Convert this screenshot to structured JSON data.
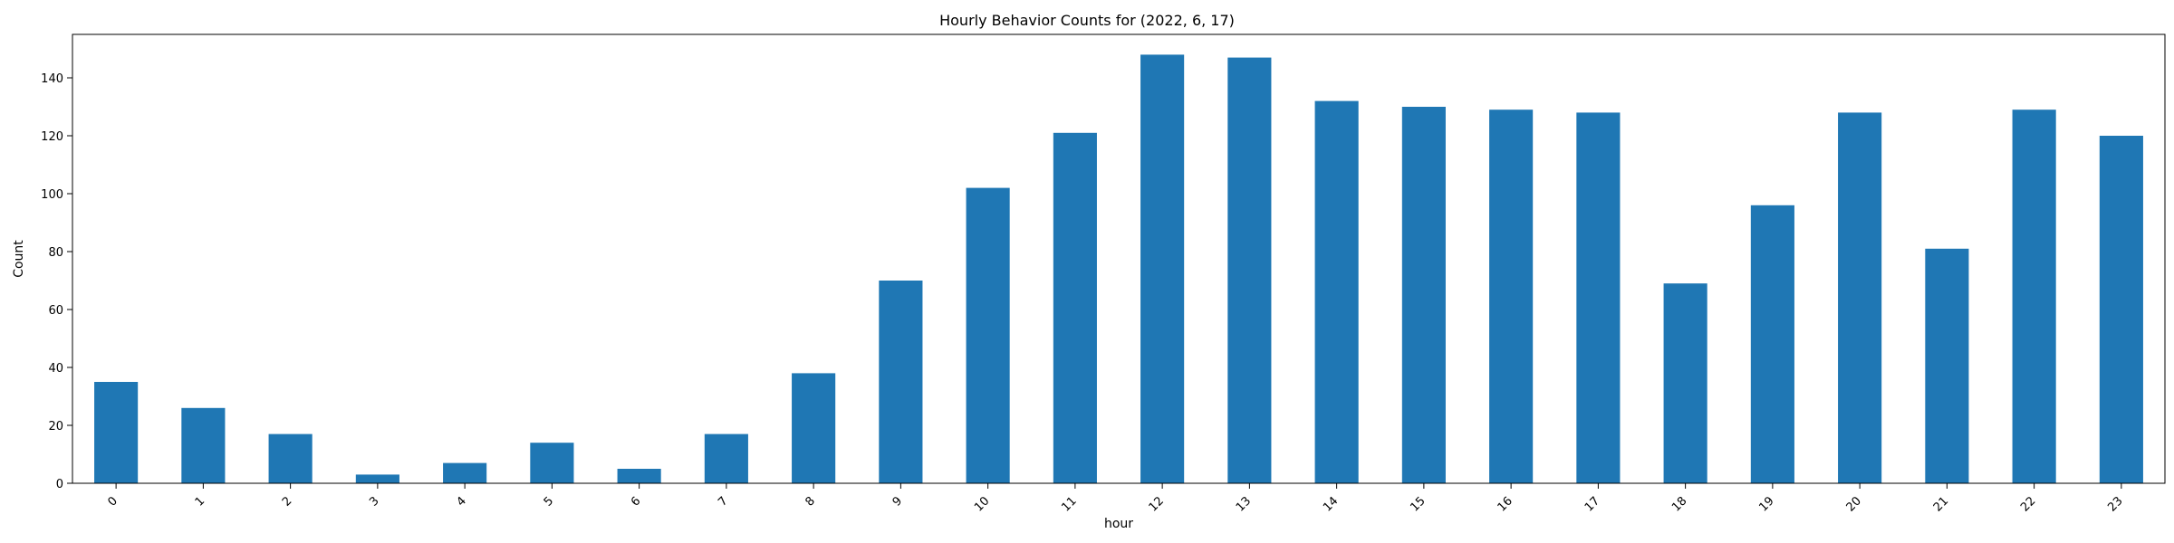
{
  "chart_data": {
    "type": "bar",
    "title": "Hourly Behavior Counts for (2022, 6, 17)",
    "xlabel": "hour",
    "ylabel": "Count",
    "categories": [
      "0",
      "1",
      "2",
      "3",
      "4",
      "5",
      "6",
      "7",
      "8",
      "9",
      "10",
      "11",
      "12",
      "13",
      "14",
      "15",
      "16",
      "17",
      "18",
      "19",
      "20",
      "21",
      "22",
      "23"
    ],
    "values": [
      35,
      26,
      17,
      3,
      7,
      14,
      5,
      17,
      38,
      70,
      102,
      121,
      148,
      147,
      132,
      130,
      129,
      128,
      69,
      96,
      128,
      81,
      129,
      120
    ],
    "ylim": [
      0,
      155
    ],
    "yticks": [
      0,
      20,
      40,
      60,
      80,
      100,
      120,
      140
    ],
    "grid": false,
    "bar_color": "#1f77b4",
    "x_tick_rotation_deg": 45
  }
}
